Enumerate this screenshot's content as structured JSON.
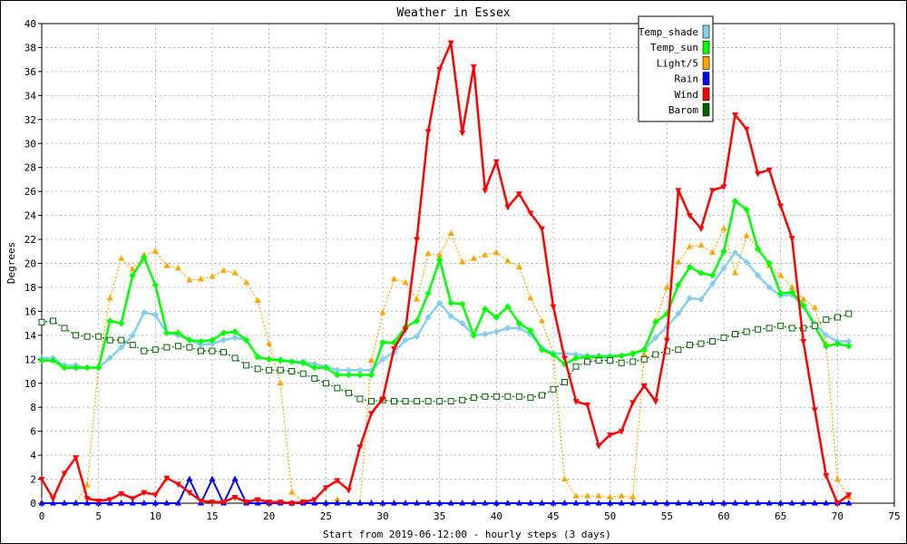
{
  "chart_data": {
    "type": "line",
    "title": "Weather in Essex",
    "xlabel": "Start from 2019-06-12:00 - hourly steps (3 days)",
    "ylabel": "Degrees",
    "xlim": [
      0,
      75
    ],
    "ylim": [
      0,
      40
    ],
    "xticks": [
      0,
      5,
      10,
      15,
      20,
      25,
      30,
      35,
      40,
      45,
      50,
      55,
      60,
      65,
      70,
      75
    ],
    "yticks": [
      0,
      2,
      4,
      6,
      8,
      10,
      12,
      14,
      16,
      18,
      20,
      22,
      24,
      26,
      28,
      30,
      32,
      34,
      36,
      38,
      40
    ],
    "grid": true,
    "legend_position": "top-right",
    "series": [
      {
        "name": "Temp_shade",
        "color": "#87ceeb",
        "style": "solid",
        "marker": "diamond",
        "values": [
          12.1,
          12.1,
          11.5,
          11.5,
          11.3,
          11.3,
          12.1,
          13.0,
          14.0,
          15.9,
          15.7,
          14.2,
          14.0,
          13.6,
          13.2,
          13.3,
          13.6,
          13.8,
          13.6,
          12.2,
          12.0,
          12.0,
          11.8,
          11.8,
          11.6,
          11.4,
          11.1,
          11.1,
          11.1,
          11.1,
          12.0,
          12.6,
          13.6,
          13.9,
          15.5,
          16.7,
          15.6,
          15.0,
          14.0,
          14.1,
          14.3,
          14.6,
          14.6,
          14.1,
          13.0,
          12.5,
          12.5,
          12.4,
          12.3,
          12.3,
          12.3,
          12.3,
          12.4,
          12.8,
          13.8,
          14.7,
          15.8,
          17.1,
          17.0,
          18.3,
          19.6,
          20.9,
          20.1,
          19.0,
          18.0,
          17.3,
          17.4,
          16.4,
          15.0,
          14.0,
          13.5,
          13.5
        ]
      },
      {
        "name": "Temp_sun",
        "color": "#00ff00",
        "style": "solid",
        "marker": "diamond",
        "values": [
          11.9,
          11.9,
          11.3,
          11.3,
          11.3,
          11.3,
          15.2,
          15.0,
          19.0,
          20.5,
          18.2,
          14.2,
          14.2,
          13.6,
          13.5,
          13.6,
          14.2,
          14.3,
          13.6,
          12.2,
          12.0,
          11.9,
          11.8,
          11.7,
          11.3,
          11.3,
          10.7,
          10.7,
          10.7,
          10.7,
          13.4,
          13.4,
          14.7,
          15.2,
          17.5,
          20.3,
          16.7,
          16.6,
          14.0,
          16.2,
          15.5,
          16.4,
          15.0,
          14.4,
          12.8,
          12.4,
          11.6,
          12.1,
          12.2,
          12.2,
          12.2,
          12.3,
          12.5,
          12.8,
          15.1,
          15.8,
          18.2,
          19.7,
          19.2,
          19.0,
          21.0,
          25.2,
          24.5,
          21.2,
          20.0,
          17.5,
          17.6,
          16.5,
          14.8,
          13.1,
          13.3,
          13.1
        ]
      },
      {
        "name": "Light/5",
        "color": "#ffa500",
        "style": "dotted",
        "marker": "triangle-up",
        "values": [
          0.1,
          0,
          0,
          0,
          1.5,
          11.5,
          17.1,
          20.4,
          19.5,
          20.7,
          21.0,
          19.8,
          19.6,
          18.6,
          18.7,
          18.9,
          19.4,
          19.2,
          18.4,
          16.9,
          13.3,
          10.0,
          0.9,
          0.1,
          0,
          0,
          0.3,
          0,
          0,
          11.9,
          15.9,
          18.7,
          18.4,
          17.0,
          20.8,
          20.7,
          22.5,
          20.1,
          20.4,
          20.7,
          20.9,
          20.2,
          19.7,
          17.1,
          15.2,
          12.5,
          2.0,
          0.6,
          0.6,
          0.6,
          0.5,
          0.6,
          0.5,
          12.4,
          15.2,
          18.0,
          20.1,
          21.4,
          21.5,
          20.9,
          22.9,
          19.2,
          22.3,
          21.3,
          19.8,
          19.0,
          18.0,
          17.0,
          16.3,
          13.3,
          2.0,
          0.5
        ]
      },
      {
        "name": "Rain",
        "color": "#0000ff",
        "style": "solid",
        "marker": "triangle-up",
        "values": [
          0,
          0,
          0,
          0,
          0,
          0,
          0,
          0,
          0,
          0,
          0,
          0,
          0,
          2.0,
          0,
          2.0,
          0,
          2.0,
          0,
          0,
          0,
          0,
          0,
          0,
          0,
          0,
          0,
          0,
          0,
          0,
          0,
          0,
          0,
          0,
          0,
          0,
          0,
          0,
          0,
          0,
          0,
          0,
          0,
          0,
          0,
          0,
          0,
          0,
          0,
          0,
          0,
          0,
          0,
          0,
          0,
          0,
          0,
          0,
          0,
          0,
          0,
          0,
          0,
          0,
          0,
          0,
          0,
          0,
          0,
          0,
          0,
          0
        ]
      },
      {
        "name": "Wind",
        "color": "#ff0000",
        "style": "solid",
        "marker": "triangle-down",
        "values": [
          2.0,
          0.4,
          2.5,
          3.8,
          0.4,
          0.2,
          0.3,
          0.8,
          0.4,
          0.9,
          0.7,
          2.1,
          1.6,
          0.9,
          0.2,
          0.1,
          0.1,
          0.5,
          0.1,
          0.3,
          0.1,
          0.1,
          0,
          0.1,
          0.3,
          1.3,
          1.9,
          1.1,
          4.7,
          7.5,
          8.7,
          12.9,
          14.5,
          22.0,
          31.0,
          36.2,
          38.4,
          30.9,
          36.4,
          26.1,
          28.5,
          24.7,
          25.8,
          24.2,
          22.9,
          16.4,
          12.1,
          8.5,
          8.2,
          4.8,
          5.7,
          6.0,
          8.4,
          9.8,
          8.5,
          13.6,
          26.1,
          24.0,
          22.9,
          26.1,
          26.4,
          32.4,
          31.2,
          27.5,
          27.8,
          24.8,
          22.1,
          13.5,
          7.8,
          2.3,
          0,
          0.7
        ]
      },
      {
        "name": "Barom",
        "color": "#006400",
        "style": "dotted",
        "marker": "square",
        "values": [
          15.1,
          15.2,
          14.6,
          14.0,
          13.9,
          13.9,
          13.6,
          13.6,
          13.2,
          12.7,
          12.8,
          13.0,
          13.1,
          13.0,
          12.7,
          12.7,
          12.6,
          12.1,
          11.5,
          11.2,
          11.1,
          11.1,
          11.0,
          10.8,
          10.4,
          10.0,
          9.6,
          9.2,
          8.7,
          8.5,
          8.6,
          8.5,
          8.5,
          8.5,
          8.5,
          8.5,
          8.5,
          8.6,
          8.8,
          8.9,
          8.9,
          8.9,
          8.9,
          8.8,
          9.0,
          9.5,
          10.1,
          11.4,
          11.8,
          11.9,
          11.9,
          11.7,
          11.8,
          12.0,
          12.4,
          12.7,
          12.8,
          13.2,
          13.3,
          13.5,
          13.8,
          14.1,
          14.3,
          14.5,
          14.6,
          14.8,
          14.6,
          14.6,
          14.8,
          15.3,
          15.5,
          15.8
        ]
      }
    ]
  }
}
